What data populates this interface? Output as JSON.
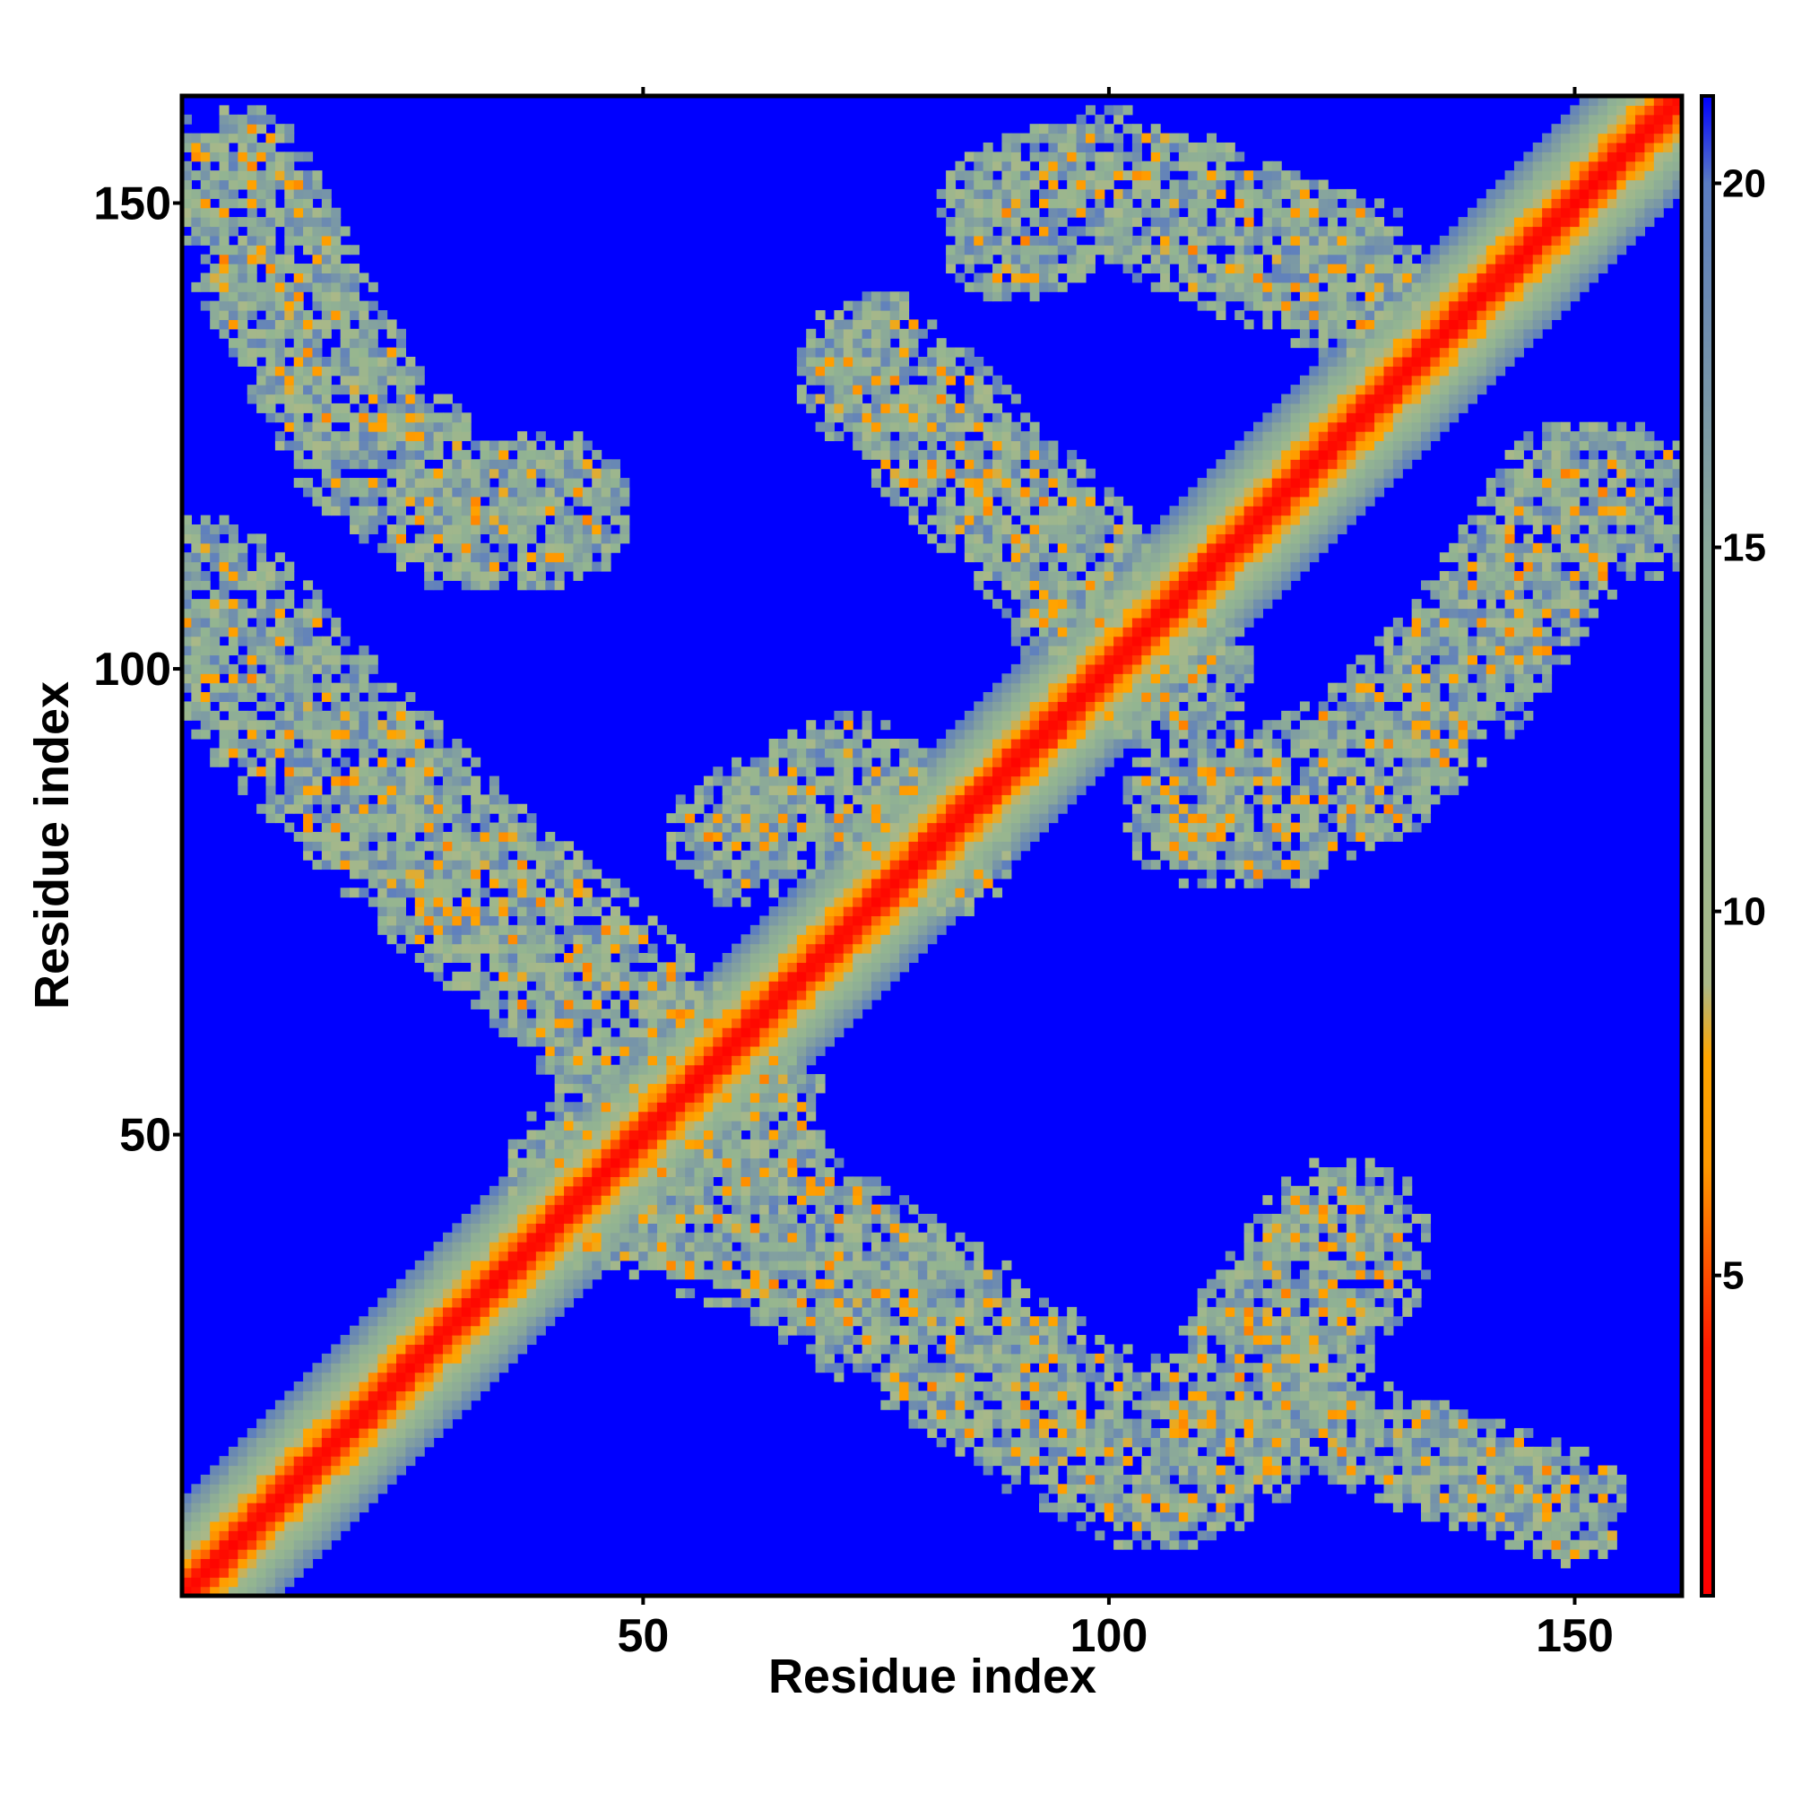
{
  "chart_data": {
    "type": "heatmap",
    "title": "",
    "xlabel": "Residue index",
    "ylabel": "Residue index",
    "xlim": [
      1,
      161
    ],
    "ylim": [
      1,
      161
    ],
    "x_ticks": [
      50,
      100,
      150
    ],
    "y_ticks": [
      50,
      100,
      150
    ],
    "colorbar": {
      "range": [
        0.6,
        21.2
      ],
      "ticks": [
        5,
        10,
        15,
        20
      ],
      "stops": [
        {
          "value": 0.6,
          "color": "#ff0000"
        },
        {
          "value": 4.0,
          "color": "#ff1a00"
        },
        {
          "value": 6.5,
          "color": "#ff9900"
        },
        {
          "value": 8.0,
          "color": "#ffa500"
        },
        {
          "value": 9.0,
          "color": "#aab888"
        },
        {
          "value": 12.0,
          "color": "#93b591"
        },
        {
          "value": 15.0,
          "color": "#8aa89a"
        },
        {
          "value": 18.0,
          "color": "#6f8dae"
        },
        {
          "value": 20.0,
          "color": "#5a7cc2"
        },
        {
          "value": 21.2,
          "color": "#0000ff"
        }
      ]
    },
    "background_value": 21.2,
    "background_color": "#0000ff",
    "description_regions": {
      "diagonal": "strong contacts along the main diagonal",
      "antidiagonal_bands": [
        {
          "center": [
            [
              1,
              105
            ],
            [
              50,
              50
            ],
            [
              120,
              1
            ]
          ],
          "note": "lower-left to center and center to lower-right arm"
        },
        {
          "center": [
            [
              100,
              100
            ],
            [
              160,
              120
            ]
          ],
          "note": "upper-right arm"
        },
        {
          "center": [
            [
              75,
              160
            ],
            [
              100,
              100
            ]
          ],
          "note": "upper-center arm"
        }
      ]
    }
  }
}
